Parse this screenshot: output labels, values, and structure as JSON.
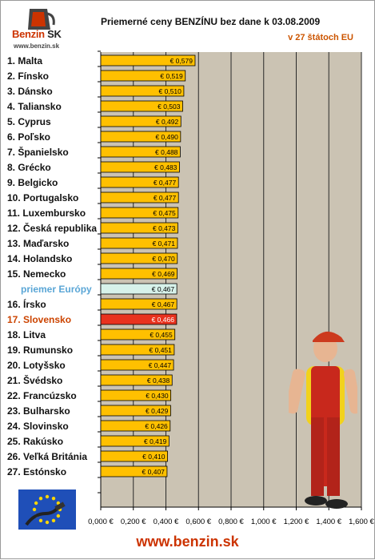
{
  "header": {
    "logo_brand": "Benzin",
    "logo_suffix": "SK",
    "logo_url": "www.benzin.sk",
    "title": "Priemerné ceny BENZÍNU bez dane k 03.08.2009",
    "subtitle": "v 27 štátoch EU"
  },
  "footer": {
    "url": "www.benzin.sk"
  },
  "colors": {
    "plot_background": "#cbc3b3",
    "bar": "#ffc000",
    "bar_average": "#d7f2ea",
    "bar_highlight": "#e8321e",
    "label_average": "#5aa6d6",
    "label_highlight": "#cc4400"
  },
  "chart_data": {
    "type": "bar",
    "orientation": "horizontal",
    "categories": [
      "1. Malta",
      "2. Fínsko",
      "3. Dánsko",
      "4. Taliansko",
      "5. Cyprus",
      "6. Poľsko",
      "7. Španielsko",
      "8. Grécko",
      "9. Belgicko",
      "10. Portugalsko",
      "11. Luxembursko",
      "12. Česká republika",
      "13. Maďarsko",
      "14. Holandsko",
      "15. Nemecko",
      "priemer Európy",
      "16. Írsko",
      "17. Slovensko",
      "18. Litva",
      "19. Rumunsko",
      "20. Lotyšsko",
      "21. Švédsko",
      "22. Francúzsko",
      "23. Bulharsko",
      "24. Slovinsko",
      "25. Rakúsko",
      "26. Veľká Británia",
      "27. Estónsko"
    ],
    "values": [
      0.579,
      0.519,
      0.51,
      0.503,
      0.492,
      0.49,
      0.488,
      0.483,
      0.477,
      0.477,
      0.475,
      0.473,
      0.471,
      0.47,
      0.469,
      0.467,
      0.467,
      0.466,
      0.455,
      0.451,
      0.447,
      0.438,
      0.43,
      0.429,
      0.426,
      0.419,
      0.41,
      0.407
    ],
    "value_labels": [
      "€ 0,579",
      "€ 0,519",
      "€ 0,510",
      "€ 0,503",
      "€ 0,492",
      "€ 0,490",
      "€ 0,488",
      "€ 0,483",
      "€ 0,477",
      "€ 0,477",
      "€ 0,475",
      "€ 0,473",
      "€ 0,471",
      "€ 0,470",
      "€ 0,469",
      "€ 0,467",
      "€ 0,467",
      "€ 0,466",
      "€ 0,455",
      "€ 0,451",
      "€ 0,447",
      "€ 0,438",
      "€ 0,430",
      "€ 0,429",
      "€ 0,426",
      "€ 0,419",
      "€ 0,410",
      "€ 0,407"
    ],
    "average_category": "priemer Európy",
    "highlight_category": "17. Slovensko",
    "xlim": [
      0,
      1.6
    ],
    "x_ticks": [
      0,
      0.2,
      0.4,
      0.6,
      0.8,
      1.0,
      1.2,
      1.4,
      1.6
    ],
    "x_tick_labels": [
      "0,000 €",
      "0,200 €",
      "0,400 €",
      "0,600 €",
      "0,800 €",
      "1,000 €",
      "1,200 €",
      "1,400 €",
      "1,600 €"
    ],
    "grid": "vertical",
    "legend": "none"
  }
}
